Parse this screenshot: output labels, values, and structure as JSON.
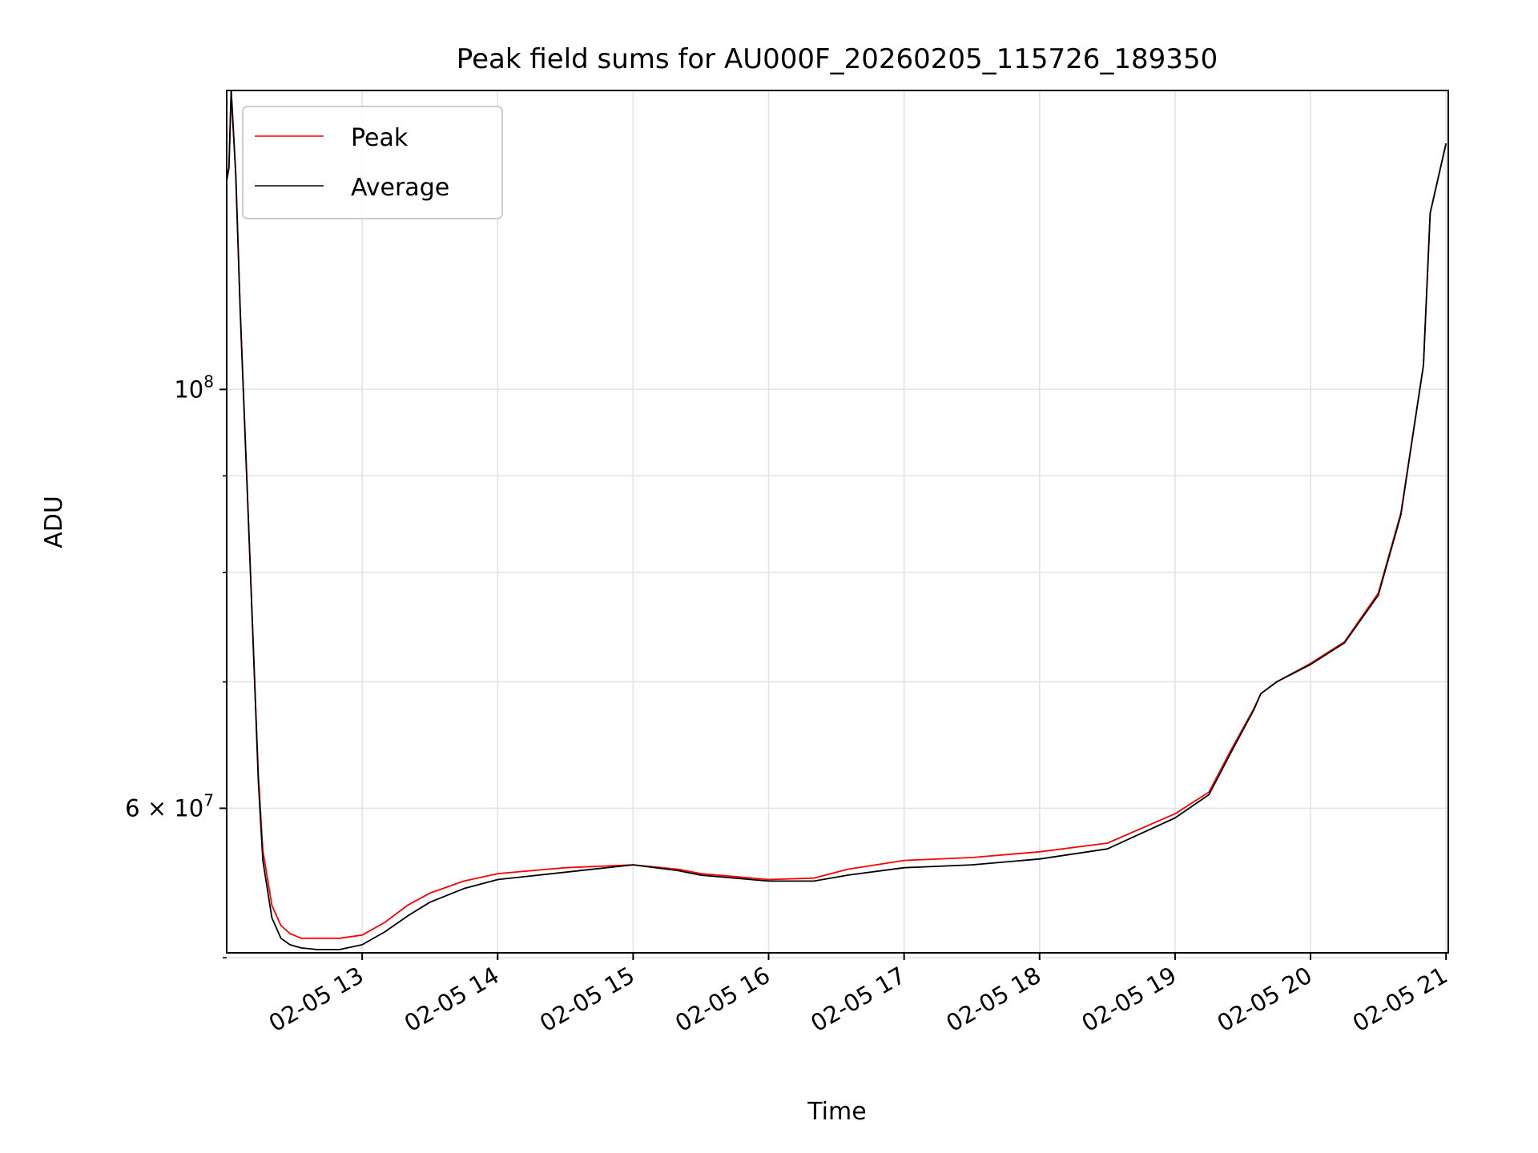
{
  "chart_data": {
    "type": "line",
    "title": "Peak field sums for AU000F_20260205_115726_189350",
    "xlabel": "Time",
    "ylabel": "ADU",
    "yscale": "log",
    "grid": true,
    "legend_position": "upper-left",
    "xlim": [
      "2026-02-05 12:00",
      "2026-02-05 21:01"
    ],
    "ylim": [
      50300000,
      144000000
    ],
    "x_ticks": [
      {
        "time": "2026-02-05 13:00",
        "label": "02-05 13"
      },
      {
        "time": "2026-02-05 14:00",
        "label": "02-05 14"
      },
      {
        "time": "2026-02-05 15:00",
        "label": "02-05 15"
      },
      {
        "time": "2026-02-05 16:00",
        "label": "02-05 16"
      },
      {
        "time": "2026-02-05 17:00",
        "label": "02-05 17"
      },
      {
        "time": "2026-02-05 18:00",
        "label": "02-05 18"
      },
      {
        "time": "2026-02-05 19:00",
        "label": "02-05 19"
      },
      {
        "time": "2026-02-05 20:00",
        "label": "02-05 20"
      },
      {
        "time": "2026-02-05 21:00",
        "label": "02-05 21"
      }
    ],
    "y_major_ticks": [
      {
        "value": 60000000,
        "base": "6 × 10",
        "exp": "7"
      },
      {
        "value": 100000000,
        "base": "10",
        "exp": "8"
      }
    ],
    "y_minor_ticks": [
      50000000,
      70000000,
      80000000,
      90000000
    ],
    "series": [
      {
        "name": "Peak",
        "color": "#ff0000",
        "x": [
          "2026-02-05 12:00",
          "2026-02-05 12:01",
          "2026-02-05 12:02",
          "2026-02-05 12:04",
          "2026-02-05 12:06",
          "2026-02-05 12:10",
          "2026-02-05 12:12",
          "2026-02-05 12:14",
          "2026-02-05 12:16",
          "2026-02-05 12:20",
          "2026-02-05 12:24",
          "2026-02-05 12:28",
          "2026-02-05 12:33",
          "2026-02-05 12:40",
          "2026-02-05 12:50",
          "2026-02-05 13:00",
          "2026-02-05 13:10",
          "2026-02-05 13:20",
          "2026-02-05 13:30",
          "2026-02-05 13:45",
          "2026-02-05 14:00",
          "2026-02-05 14:30",
          "2026-02-05 15:00",
          "2026-02-05 15:20",
          "2026-02-05 15:30",
          "2026-02-05 16:00",
          "2026-02-05 16:20",
          "2026-02-05 16:35",
          "2026-02-05 17:00",
          "2026-02-05 17:30",
          "2026-02-05 18:00",
          "2026-02-05 18:30",
          "2026-02-05 19:00",
          "2026-02-05 19:15",
          "2026-02-05 19:25",
          "2026-02-05 19:35",
          "2026-02-05 19:38",
          "2026-02-05 19:45",
          "2026-02-05 20:00",
          "2026-02-05 20:15",
          "2026-02-05 20:30",
          "2026-02-05 20:40",
          "2026-02-05 20:50",
          "2026-02-05 20:53",
          "2026-02-05 21:00"
        ],
        "values": [
          130000000,
          131000000,
          144000000,
          130000000,
          110000000,
          83000000,
          72000000,
          62500000,
          57000000,
          53300000,
          52000000,
          51500000,
          51200000,
          51200000,
          51200000,
          51400000,
          52200000,
          53300000,
          54100000,
          54900000,
          55400000,
          55800000,
          56000000,
          55700000,
          55400000,
          55000000,
          55100000,
          55700000,
          56300000,
          56500000,
          56900000,
          57500000,
          59600000,
          61200000,
          64500000,
          67800000,
          69000000,
          70000000,
          71600000,
          73500000,
          78000000,
          86000000,
          103000000,
          124000000,
          135000000
        ]
      },
      {
        "name": "Average",
        "color": "#000000",
        "x": [
          "2026-02-05 12:00",
          "2026-02-05 12:01",
          "2026-02-05 12:02",
          "2026-02-05 12:04",
          "2026-02-05 12:06",
          "2026-02-05 12:10",
          "2026-02-05 12:12",
          "2026-02-05 12:14",
          "2026-02-05 12:16",
          "2026-02-05 12:20",
          "2026-02-05 12:24",
          "2026-02-05 12:28",
          "2026-02-05 12:33",
          "2026-02-05 12:40",
          "2026-02-05 12:50",
          "2026-02-05 13:00",
          "2026-02-05 13:10",
          "2026-02-05 13:20",
          "2026-02-05 13:30",
          "2026-02-05 13:45",
          "2026-02-05 14:00",
          "2026-02-05 14:30",
          "2026-02-05 15:00",
          "2026-02-05 15:20",
          "2026-02-05 15:30",
          "2026-02-05 16:00",
          "2026-02-05 16:20",
          "2026-02-05 16:35",
          "2026-02-05 17:00",
          "2026-02-05 17:30",
          "2026-02-05 18:00",
          "2026-02-05 18:30",
          "2026-02-05 19:00",
          "2026-02-05 19:15",
          "2026-02-05 19:25",
          "2026-02-05 19:35",
          "2026-02-05 19:38",
          "2026-02-05 19:45",
          "2026-02-05 20:00",
          "2026-02-05 20:15",
          "2026-02-05 20:30",
          "2026-02-05 20:40",
          "2026-02-05 20:50",
          "2026-02-05 20:53",
          "2026-02-05 21:00"
        ],
        "values": [
          129000000,
          131000000,
          144000000,
          130000000,
          110000000,
          83000000,
          72000000,
          62000000,
          56300000,
          52500000,
          51200000,
          50800000,
          50600000,
          50500000,
          50500000,
          50800000,
          51600000,
          52600000,
          53500000,
          54400000,
          55000000,
          55500000,
          56000000,
          55600000,
          55300000,
          54900000,
          54900000,
          55300000,
          55800000,
          56000000,
          56400000,
          57100000,
          59300000,
          61000000,
          64300000,
          67700000,
          69000000,
          70000000,
          71500000,
          73400000,
          77800000,
          85800000,
          103000000,
          124000000,
          135000000
        ]
      }
    ]
  }
}
